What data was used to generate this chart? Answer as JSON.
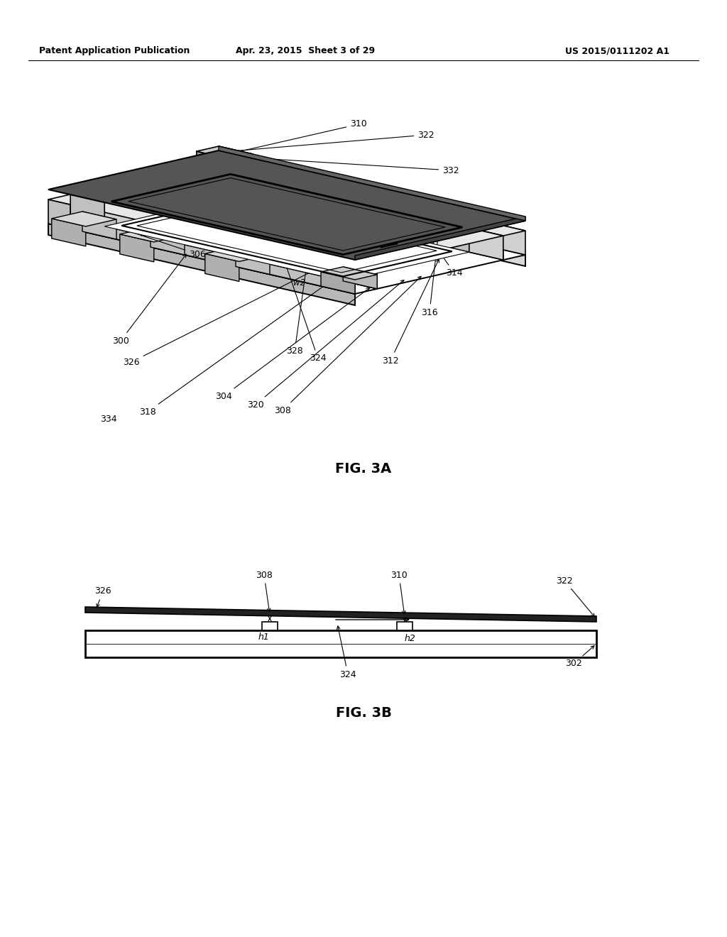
{
  "background_color": "#ffffff",
  "header_left": "Patent Application Publication",
  "header_center": "Apr. 23, 2015  Sheet 3 of 29",
  "header_right": "US 2015/0111202 A1",
  "fig3a_label": "FIG. 3A",
  "fig3b_label": "FIG. 3B",
  "line_color": "#000000",
  "text_color": "#000000"
}
